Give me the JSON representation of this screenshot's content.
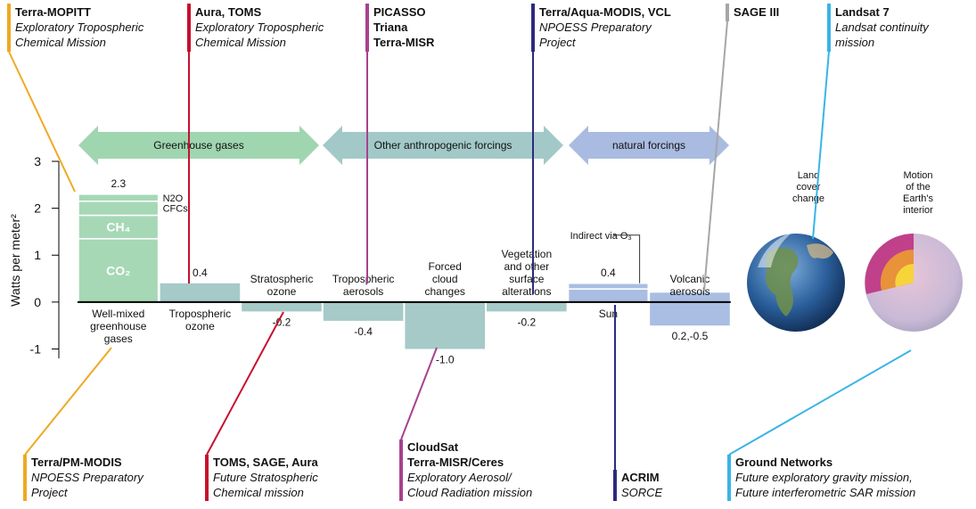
{
  "chart_data": {
    "type": "bar",
    "y_label": "Watts per meter²",
    "ylim": [
      -1.2,
      3.0
    ],
    "yticks": [
      -1,
      0,
      1,
      2,
      3
    ],
    "bars": [
      {
        "label": [
          "Well-mixed",
          "greenhouse",
          "gases"
        ],
        "value": 2.3,
        "color": "#a6d8b6",
        "segments": [
          {
            "name": "CO₂",
            "value": 1.35
          },
          {
            "name": "CH₄",
            "value": 0.5
          },
          {
            "name": "CFCs",
            "value": 0.3
          },
          {
            "name": "N2O",
            "value": 0.15
          }
        ]
      },
      {
        "label": [
          "Tropospheric",
          "ozone"
        ],
        "value": 0.4,
        "color": "#a5cac8"
      },
      {
        "label": [
          "Stratospheric",
          "ozone"
        ],
        "value": -0.2,
        "color": "#a5cac8"
      },
      {
        "label": [
          "Tropospheric",
          "aerosols"
        ],
        "value": -0.4,
        "color": "#a5cac8"
      },
      {
        "label": [
          "Forced",
          "cloud",
          "changes"
        ],
        "value": -1.0,
        "value_label": "-1.0",
        "color": "#a5cac8"
      },
      {
        "label": [
          "Vegetation",
          "and other",
          "surface",
          "alterations"
        ],
        "value": -0.2,
        "color": "#a5cac8"
      },
      {
        "label": [
          "Sun"
        ],
        "value": 0.4,
        "color": "#aabde2",
        "segments": [
          {
            "value": 0.28
          },
          {
            "name": "Indirect via O₃",
            "value": 0.12
          }
        ]
      },
      {
        "label": [
          "Volcanic",
          "aerosols"
        ],
        "range": [
          0.2,
          -0.5
        ],
        "value_label": "0.2,-0.5",
        "color": "#aabde2"
      }
    ]
  },
  "forcing_groups": [
    {
      "label": "Greenhouse gases",
      "color": "#9fd6b0"
    },
    {
      "label": "Other anthropogenic forcings",
      "color": "#a2c9c7"
    },
    {
      "label": "natural forcings",
      "color": "#a9bbe0"
    }
  ],
  "globes": [
    {
      "label": [
        "Land",
        "cover",
        "change"
      ]
    },
    {
      "label": [
        "Motion",
        "of the",
        "Earth's",
        "interior"
      ]
    }
  ],
  "missions": [
    {
      "title": [
        "Terra-MOPITT"
      ],
      "subtitle": [
        "Exploratory Tropospheric",
        "Chemical Mission"
      ],
      "color": "#eeaa22"
    },
    {
      "title": [
        "Aura, TOMS"
      ],
      "subtitle": [
        "Exploratory Tropospheric",
        "Chemical Mission"
      ],
      "color": "#c8102e"
    },
    {
      "title": [
        "PICASSO",
        "Triana",
        "Terra-MISR"
      ],
      "color": "#a8418f"
    },
    {
      "title": [
        "Terra/Aqua-MODIS, VCL"
      ],
      "subtitle": [
        "NPOESS Preparatory",
        "Project"
      ],
      "color": "#2e2a7e"
    },
    {
      "title": [
        "SAGE III"
      ],
      "color": "#a6a6a6"
    },
    {
      "title": [
        "Landsat 7"
      ],
      "subtitle": [
        "Landsat continuity",
        "mission"
      ],
      "color": "#3ab4e6"
    },
    {
      "title": [
        "Terra/PM-MODIS"
      ],
      "subtitle": [
        "NPOESS Preparatory",
        "Project"
      ],
      "color": "#eeaa22"
    },
    {
      "title": [
        "TOMS, SAGE, Aura"
      ],
      "subtitle": [
        "Future Stratospheric",
        "Chemical mission"
      ],
      "color": "#c8102e"
    },
    {
      "title": [
        "CloudSat",
        "Terra-MISR/Ceres"
      ],
      "subtitle": [
        "Exploratory Aerosol/",
        "Cloud Radiation mission"
      ],
      "color": "#a8418f"
    },
    {
      "title": [
        "ACRIM"
      ],
      "subtitle": [
        "SORCE"
      ],
      "color": "#2e2a7e"
    },
    {
      "title": [
        "Ground Networks"
      ],
      "subtitle": [
        "Future exploratory gravity mission,",
        "Future interferometric SAR mission"
      ],
      "color": "#3ab4e6"
    }
  ]
}
